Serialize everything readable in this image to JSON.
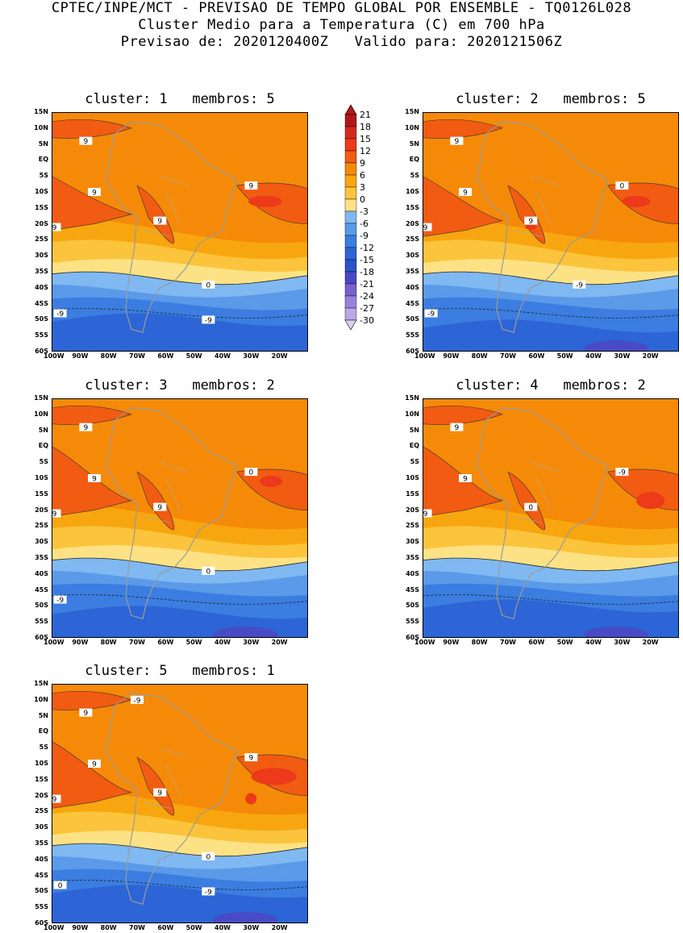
{
  "header": {
    "line1": "CPTEC/INPE/MCT - PREVISAO DE TEMPO GLOBAL POR ENSEMBLE - TQ0126L028",
    "line2": "Cluster Medio para a Temperatura (C) em 700 hPa",
    "line3": "Previsao de: 2020120400Z   Valido para: 2020121506Z"
  },
  "map": {
    "lat_labels": [
      "15N",
      "10N",
      "5N",
      "EQ",
      "5S",
      "10S",
      "15S",
      "20S",
      "25S",
      "30S",
      "35S",
      "40S",
      "45S",
      "50S",
      "55S",
      "60S"
    ],
    "lon_labels": [
      "100W",
      "90W",
      "80W",
      "70W",
      "60W",
      "50W",
      "40W",
      "30W",
      "20W"
    ],
    "lon_range": [
      -100,
      -10
    ],
    "lat_range": [
      -60,
      15
    ]
  },
  "panels": [
    {
      "title": "cluster: 1   membros: 5",
      "contour_labels": [
        "9",
        "9",
        "9",
        "9",
        "9",
        "0",
        "-9",
        "-9"
      ]
    },
    {
      "title": "cluster: 2   membros: 5",
      "contour_labels": [
        "9",
        "9",
        "9",
        "9",
        "0",
        "-9",
        "-9"
      ]
    },
    {
      "title": "cluster: 3   membros: 2",
      "contour_labels": [
        "9",
        "9",
        "9",
        "9",
        "0",
        "0",
        "-9"
      ]
    },
    {
      "title": "cluster: 4   membros: 2",
      "contour_labels": [
        "9",
        "9",
        "9",
        "0",
        "-9"
      ]
    },
    {
      "title": "cluster: 5   membros: 1",
      "contour_labels": [
        "9",
        "9",
        "9",
        "9",
        "9",
        "0",
        "0",
        "-9",
        "-9"
      ]
    }
  ],
  "colorbar": {
    "labels": [
      "21",
      "18",
      "15",
      "12",
      "9",
      "6",
      "3",
      "0",
      "-3",
      "-6",
      "-9",
      "-12",
      "-15",
      "-18",
      "-21",
      "-24",
      "-27",
      "-30"
    ],
    "colors": {
      "t21": "#b0171c",
      "t18": "#d42a1e",
      "t15": "#ec3a1a",
      "t12": "#f25b12",
      "t9": "#f58a08",
      "t6": "#f8a60f",
      "t3": "#fbc43c",
      "t0": "#fde285",
      "tm3": "#80b8f2",
      "tm6": "#5a9ae8",
      "tm9": "#3b7de0",
      "tm12": "#2d65d6",
      "tm15": "#2a55c8",
      "tm18": "#4b48c4",
      "tm21": "#7860d0",
      "tm24": "#9a82dc",
      "tm27": "#bba6e6",
      "tm30": "#dccfee"
    }
  }
}
